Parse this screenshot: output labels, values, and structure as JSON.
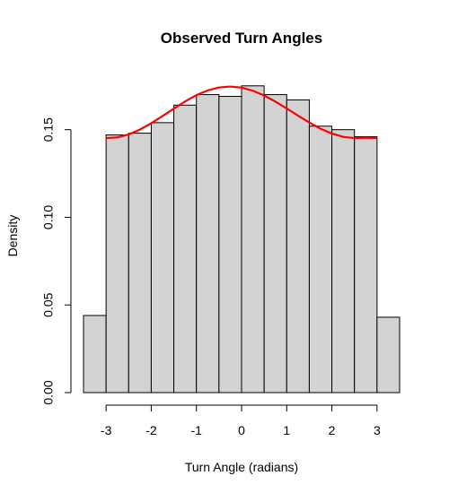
{
  "chart_data": {
    "type": "bar",
    "title": "Observed Turn Angles",
    "xlabel": "Turn Angle (radians)",
    "ylabel": "Density",
    "xlim": [
      -3.5,
      3.5
    ],
    "ylim": [
      0,
      0.18
    ],
    "x_ticks": [
      -3,
      -2,
      -1,
      0,
      1,
      2,
      3
    ],
    "y_ticks": [
      0.0,
      0.05,
      0.1,
      0.15
    ],
    "y_tick_labels": [
      "0.00",
      "0.05",
      "0.10",
      "0.15"
    ],
    "bins": [
      {
        "start": -3.5,
        "end": -3.0,
        "density": 0.044
      },
      {
        "start": -3.0,
        "end": -2.5,
        "density": 0.147
      },
      {
        "start": -2.5,
        "end": -2.0,
        "density": 0.148
      },
      {
        "start": -2.0,
        "end": -1.5,
        "density": 0.154
      },
      {
        "start": -1.5,
        "end": -1.0,
        "density": 0.164
      },
      {
        "start": -1.0,
        "end": -0.5,
        "density": 0.17
      },
      {
        "start": -0.5,
        "end": 0.0,
        "density": 0.169
      },
      {
        "start": 0.0,
        "end": 0.5,
        "density": 0.175
      },
      {
        "start": 0.5,
        "end": 1.0,
        "density": 0.17
      },
      {
        "start": 1.0,
        "end": 1.5,
        "density": 0.167
      },
      {
        "start": 1.5,
        "end": 2.0,
        "density": 0.152
      },
      {
        "start": 2.0,
        "end": 2.5,
        "density": 0.15
      },
      {
        "start": 2.5,
        "end": 3.0,
        "density": 0.146
      },
      {
        "start": 3.0,
        "end": 3.5,
        "density": 0.043
      }
    ],
    "curve": {
      "type": "line",
      "color": "#ff0000",
      "x": [
        -3.0,
        -2.75,
        -2.5,
        -2.25,
        -2.0,
        -1.75,
        -1.5,
        -1.25,
        -1.0,
        -0.75,
        -0.5,
        -0.25,
        0.0,
        0.25,
        0.5,
        0.75,
        1.0,
        1.25,
        1.5,
        1.75,
        2.0,
        2.25,
        2.5,
        2.75,
        3.0
      ],
      "y": [
        0.1452,
        0.1456,
        0.1473,
        0.1501,
        0.1537,
        0.1578,
        0.162,
        0.1661,
        0.1697,
        0.1724,
        0.1741,
        0.1746,
        0.174,
        0.1722,
        0.1695,
        0.166,
        0.1621,
        0.158,
        0.1541,
        0.1505,
        0.1478,
        0.1459,
        0.1452,
        0.1454,
        0.1452
      ]
    },
    "grid": false,
    "legend": "none",
    "bar_fill": "#d3d3d3",
    "bar_stroke": "#000000"
  }
}
